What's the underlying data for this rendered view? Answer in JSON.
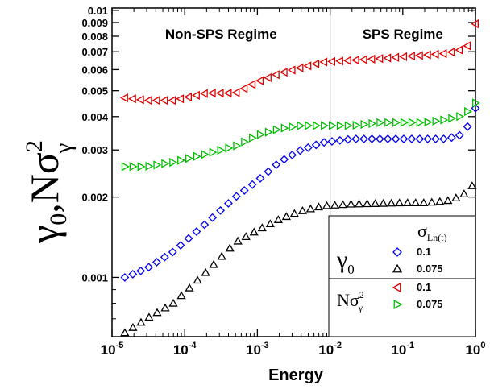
{
  "chart_data": {
    "type": "scatter",
    "xlabel": "Energy",
    "ylabel_main": "γ",
    "ylabel_sub": "0",
    "ylabel_sep": ",Nσ",
    "ylabel_sup": "2",
    "ylabel_sub2": "γ",
    "xscale": "log",
    "yscale": "log",
    "xlim": [
      1e-05,
      1
    ],
    "ylim": [
      0.0006,
      0.0102
    ],
    "grid": false,
    "legend_position": "bottom-right",
    "x_ticks": [
      {
        "value": 1e-05,
        "base": "10",
        "exp": "-5"
      },
      {
        "value": 0.0001,
        "base": "10",
        "exp": "-4"
      },
      {
        "value": 0.001,
        "base": "10",
        "exp": "-3"
      },
      {
        "value": 0.01,
        "base": "10",
        "exp": "-2"
      },
      {
        "value": 0.1,
        "base": "10",
        "exp": "-1"
      },
      {
        "value": 1,
        "base": "10",
        "exp": "0"
      }
    ],
    "y_ticks": [
      {
        "value": 0.001,
        "label": "0.001"
      },
      {
        "value": 0.002,
        "label": "0.002"
      },
      {
        "value": 0.003,
        "label": "0.003"
      },
      {
        "value": 0.004,
        "label": "0.004"
      },
      {
        "value": 0.005,
        "label": "0.005"
      },
      {
        "value": 0.006,
        "label": "0.006"
      },
      {
        "value": 0.007,
        "label": "0.007"
      },
      {
        "value": 0.008,
        "label": "0.008"
      },
      {
        "value": 0.009,
        "label": "0.009"
      },
      {
        "value": 0.01,
        "label": "0.01"
      }
    ],
    "regime_boundary": 0.01,
    "regions": [
      {
        "label": "Non-SPS Regime"
      },
      {
        "label": "SPS Regime"
      }
    ],
    "legend": {
      "header_main": "σ",
      "header_sub": "Ln(t)",
      "groups": [
        {
          "sym": "γ",
          "sym_sub": "0",
          "entries": [
            {
              "series": 0,
              "label": "0.1"
            },
            {
              "series": 1,
              "label": "0.075"
            }
          ]
        },
        {
          "sym": "Nσ",
          "sym_sup": "2",
          "sym_sub": "γ",
          "entries": [
            {
              "series": 2,
              "label": "0.1"
            },
            {
              "series": 3,
              "label": "0.075"
            }
          ]
        }
      ]
    },
    "series": [
      {
        "marker": "diamond",
        "color": "#0000ee",
        "fill": "none",
        "x": [
          1.5e-05,
          3e-05,
          7e-05,
          0.0002,
          0.0005,
          0.001,
          0.002,
          0.004,
          0.008,
          0.02,
          0.05,
          0.1,
          0.2,
          0.4,
          0.6,
          0.8,
          0.9,
          0.95,
          1.0
        ],
        "y": [
          0.001,
          0.00108,
          0.00125,
          0.0016,
          0.002,
          0.0023,
          0.0027,
          0.003,
          0.0032,
          0.0033,
          0.0033,
          0.0033,
          0.0033,
          0.0033,
          0.0034,
          0.0037,
          0.0039,
          0.004,
          0.0043
        ]
      },
      {
        "marker": "triangle-up",
        "color": "#000000",
        "fill": "none",
        "x": [
          1.5e-05,
          3e-05,
          7e-05,
          0.0002,
          0.0005,
          0.001,
          0.002,
          0.004,
          0.008,
          0.02,
          0.05,
          0.1,
          0.2,
          0.4,
          0.6,
          0.8,
          0.9
        ],
        "y": [
          0.00062,
          0.0007,
          0.0008,
          0.00105,
          0.00135,
          0.0015,
          0.00165,
          0.00177,
          0.00185,
          0.00188,
          0.00189,
          0.0019,
          0.0019,
          0.00193,
          0.002,
          0.0021,
          0.0022
        ]
      },
      {
        "marker": "triangle-left",
        "color": "#dd0000",
        "fill": "none",
        "x": [
          1.5e-05,
          3e-05,
          7e-05,
          0.0002,
          0.0005,
          0.001,
          0.002,
          0.004,
          0.008,
          0.02,
          0.05,
          0.1,
          0.2,
          0.4,
          0.6,
          0.8,
          0.9,
          1.0
        ],
        "y": [
          0.0047,
          0.0046,
          0.0046,
          0.0049,
          0.0049,
          0.0054,
          0.0058,
          0.0061,
          0.0064,
          0.0065,
          0.0066,
          0.0067,
          0.0068,
          0.0069,
          0.0071,
          0.0074,
          0.0079,
          0.0089
        ]
      },
      {
        "marker": "triangle-right",
        "color": "#00bb00",
        "fill": "none",
        "x": [
          1.5e-05,
          3e-05,
          7e-05,
          0.0002,
          0.0005,
          0.001,
          0.002,
          0.004,
          0.008,
          0.02,
          0.05,
          0.1,
          0.2,
          0.4,
          0.6,
          0.8,
          0.9,
          1.0
        ],
        "y": [
          0.0026,
          0.0026,
          0.0027,
          0.0029,
          0.0031,
          0.0034,
          0.0036,
          0.0037,
          0.0037,
          0.0037,
          0.0038,
          0.0038,
          0.0038,
          0.0039,
          0.004,
          0.0042,
          0.0044,
          0.0045
        ]
      }
    ]
  }
}
